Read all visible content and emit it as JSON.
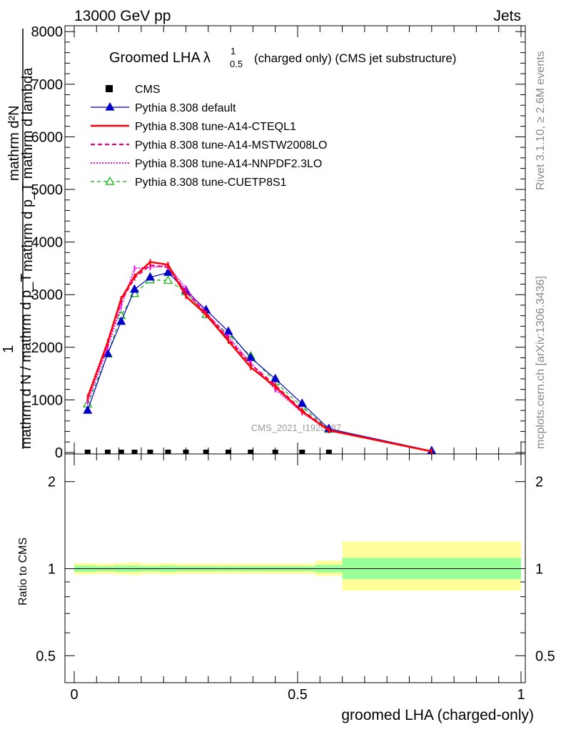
{
  "header": {
    "left": "13000 GeV pp",
    "right": "Jets"
  },
  "side": {
    "rivet": "Rivet 3.1.10, ≥ 2.6M events",
    "mcplots": "mcplots.cern.ch [arXiv:1306.3436]"
  },
  "watermark": "CMS_2021_I1920187",
  "colors": {
    "cms": "#000000",
    "default": "#0000c8",
    "cteql1": "#ff0000",
    "mstw": "#e8007a",
    "nnpdf": "#ff00ff",
    "cuetp8s1": "#00b400",
    "band_inner": "#99ff99",
    "band_outer": "#ffff99"
  },
  "chart_data": [
    {
      "type": "line",
      "title_main": "Groomed LHA",
      "title_symbol": "λ",
      "title_sup": "1",
      "title_sub": "0.5",
      "title_rest": "(charged only) (CMS jet substructure)",
      "ylabel_top": "mathrm d²N",
      "ylabel_top2": "mathrm d p_T mathrm d lambda",
      "ylabel_bottom": "1",
      "ylabel_bottom2": "mathrm d N / mathrm d p_T",
      "xlim": [
        0,
        1
      ],
      "ylim": [
        0,
        8200
      ],
      "yticks": [
        0,
        1000,
        2000,
        3000,
        4000,
        5000,
        6000,
        7000,
        8000
      ],
      "ytick_labels": [
        "0",
        "1000",
        "2000",
        "3000",
        "4000",
        "5000",
        "6000",
        "7000",
        "8000"
      ],
      "legend_placement": "top-left",
      "series": [
        {
          "key": "cms",
          "name": "CMS",
          "x": [
            0.03,
            0.075,
            0.105,
            0.135,
            0.17,
            0.21,
            0.25,
            0.295,
            0.345,
            0.395,
            0.45,
            0.51,
            0.57
          ],
          "y": [
            0,
            0,
            0,
            0,
            0,
            0,
            0,
            0,
            0,
            0,
            0,
            0,
            0
          ]
        },
        {
          "key": "default",
          "name": "Pythia 8.308 default",
          "x": [
            0.03,
            0.075,
            0.105,
            0.135,
            0.17,
            0.21,
            0.25,
            0.295,
            0.345,
            0.395,
            0.45,
            0.51,
            0.57,
            0.8
          ],
          "y": [
            800,
            1880,
            2490,
            3100,
            3330,
            3420,
            3080,
            2710,
            2300,
            1800,
            1400,
            930,
            450,
            30
          ]
        },
        {
          "key": "cteql1",
          "name": "Pythia 8.308 tune-A14-CTEQL1",
          "x": [
            0.03,
            0.075,
            0.105,
            0.135,
            0.17,
            0.21,
            0.25,
            0.295,
            0.345,
            0.395,
            0.45,
            0.51,
            0.57,
            0.8
          ],
          "y": [
            1050,
            2100,
            2920,
            3350,
            3620,
            3570,
            2970,
            2620,
            2120,
            1620,
            1250,
            780,
            420,
            20
          ]
        },
        {
          "key": "mstw",
          "name": "Pythia 8.308 tune-A14-MSTW2008LO",
          "x": [
            0.03,
            0.075,
            0.105,
            0.135,
            0.17,
            0.21,
            0.25,
            0.295,
            0.345,
            0.395,
            0.45,
            0.51,
            0.57,
            0.8
          ],
          "y": [
            1030,
            2080,
            2880,
            3320,
            3560,
            3520,
            3050,
            2650,
            2160,
            1680,
            1280,
            800,
            430,
            20
          ]
        },
        {
          "key": "nnpdf",
          "name": "Pythia 8.308 tune-A14-NNPDF2.3LO",
          "x": [
            0.03,
            0.075,
            0.105,
            0.135,
            0.17,
            0.21,
            0.25,
            0.295,
            0.345,
            0.395,
            0.45,
            0.51,
            0.57,
            0.8
          ],
          "y": [
            960,
            2000,
            2780,
            3500,
            3520,
            3550,
            3120,
            2650,
            2200,
            1700,
            1200,
            760,
            420,
            20
          ]
        },
        {
          "key": "cuetp8s1",
          "name": "Pythia 8.308 tune-CUETP8S1",
          "x": [
            0.03,
            0.075,
            0.105,
            0.135,
            0.17,
            0.21,
            0.25,
            0.295,
            0.345,
            0.395,
            0.45,
            0.51,
            0.57,
            0.8
          ],
          "y": [
            920,
            1870,
            2600,
            3020,
            3280,
            3270,
            3050,
            2620,
            2250,
            1830,
            1340,
            870,
            440,
            30
          ]
        }
      ]
    },
    {
      "type": "line",
      "ylabel": "Ratio to CMS",
      "xlabel": "groomed LHA (charged-only)",
      "xlim": [
        0,
        1
      ],
      "ylim": [
        0.4,
        2.3
      ],
      "y_scale": "log",
      "xticks": [
        0,
        0.5,
        1
      ],
      "xtick_labels": [
        "0",
        "0.5",
        "1"
      ],
      "yticks": [
        0.5,
        1,
        2
      ],
      "ytick_labels": [
        "0.5",
        "1",
        "2"
      ],
      "band_edges": [
        0,
        0.05,
        0.09,
        0.12,
        0.15,
        0.19,
        0.23,
        0.27,
        0.32,
        0.37,
        0.42,
        0.48,
        0.54,
        0.6,
        1.0
      ],
      "band_inner": [
        [
          0.975,
          1.025
        ],
        [
          0.98,
          1.02
        ],
        [
          0.975,
          1.025
        ],
        [
          0.975,
          1.025
        ],
        [
          0.98,
          1.02
        ],
        [
          0.975,
          1.025
        ],
        [
          0.98,
          1.02
        ],
        [
          0.98,
          1.02
        ],
        [
          0.98,
          1.02
        ],
        [
          0.98,
          1.02
        ],
        [
          0.98,
          1.02
        ],
        [
          0.98,
          1.02
        ],
        [
          0.97,
          1.03
        ],
        [
          0.92,
          1.09
        ]
      ],
      "band_outer": [
        [
          0.955,
          1.045
        ],
        [
          0.96,
          1.04
        ],
        [
          0.955,
          1.045
        ],
        [
          0.95,
          1.05
        ],
        [
          0.96,
          1.04
        ],
        [
          0.955,
          1.045
        ],
        [
          0.96,
          1.04
        ],
        [
          0.96,
          1.04
        ],
        [
          0.96,
          1.04
        ],
        [
          0.96,
          1.04
        ],
        [
          0.96,
          1.04
        ],
        [
          0.96,
          1.04
        ],
        [
          0.945,
          1.065
        ],
        [
          0.84,
          1.24
        ]
      ],
      "reference": 1
    }
  ]
}
